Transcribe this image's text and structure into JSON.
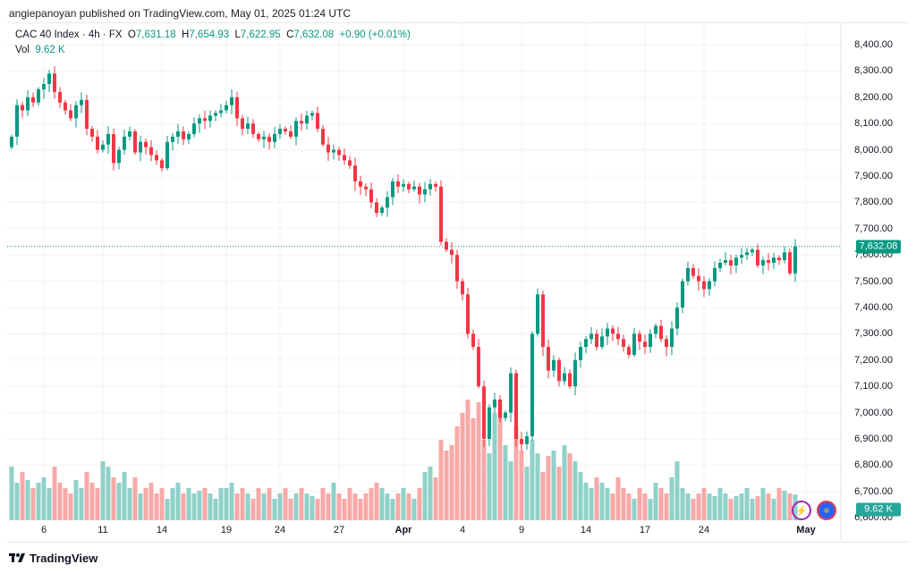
{
  "published": "angiepanoyan published on TradingView.com, May 01, 2025 01:24 UTC",
  "legend": {
    "symbol": "CAC 40 Index · 4h · FX",
    "o_label": "O",
    "o": "7,631.18",
    "h_label": "H",
    "h": "7,654.93",
    "l_label": "L",
    "l": "7,622.95",
    "c_label": "C",
    "c": "7,632.08",
    "change": "+0.90 (+0.01%)",
    "vol_label": "Vol",
    "vol": "9.62 K"
  },
  "colors": {
    "up": "#089981",
    "down": "#f23645",
    "up_vol": "#8fd1c9",
    "down_vol": "#f7a9a7"
  },
  "badges": {
    "price": "7,632.08",
    "volume": "9.62 K"
  },
  "footer": {
    "brand": "TradingView"
  },
  "chart_data": {
    "type": "candlestick",
    "symbol": "CAC 40 Index",
    "interval": "4h",
    "y_ticks": [
      "8,400.00",
      "8,300.00",
      "8,200.00",
      "8,100.00",
      "8,000.00",
      "7,900.00",
      "7,800.00",
      "7,700.00",
      "7,600.00",
      "7,500.00",
      "7,400.00",
      "7,300.00",
      "7,200.00",
      "7,100.00",
      "7,000.00",
      "6,900.00",
      "6,800.00",
      "6,700.00",
      "6,600.00"
    ],
    "y_tick_values": [
      8400,
      8300,
      8200,
      8100,
      8000,
      7900,
      7800,
      7700,
      7600,
      7500,
      7400,
      7300,
      7200,
      7100,
      7000,
      6900,
      6800,
      6700,
      6600
    ],
    "x_ticks": [
      {
        "label": "6",
        "i": 6
      },
      {
        "label": "11",
        "i": 17
      },
      {
        "label": "14",
        "i": 28
      },
      {
        "label": "19",
        "i": 40
      },
      {
        "label": "24",
        "i": 50
      },
      {
        "label": "27",
        "i": 61
      },
      {
        "label": "Apr",
        "i": 73
      },
      {
        "label": "4",
        "i": 84
      },
      {
        "label": "9",
        "i": 95
      },
      {
        "label": "14",
        "i": 107
      },
      {
        "label": "17",
        "i": 118
      },
      {
        "label": "24",
        "i": 129
      },
      {
        "label": "May",
        "i": 148
      }
    ],
    "last_price": 7632.08,
    "close": [
      8050,
      8170,
      8150,
      8200,
      8180,
      8230,
      8250,
      8290,
      8220,
      8180,
      8150,
      8120,
      8170,
      8190,
      8080,
      8050,
      8000,
      8020,
      8060,
      7950,
      8000,
      8050,
      8070,
      7990,
      8030,
      8010,
      7980,
      7960,
      7930,
      8030,
      8050,
      8070,
      8040,
      8060,
      8100,
      8120,
      8110,
      8130,
      8140,
      8150,
      8170,
      8200,
      8120,
      8080,
      8100,
      8060,
      8040,
      8050,
      8030,
      8060,
      8080,
      8070,
      8050,
      8110,
      8100,
      8130,
      8140,
      8080,
      8020,
      7990,
      8000,
      7980,
      7960,
      7940,
      7880,
      7860,
      7850,
      7800,
      7760,
      7780,
      7820,
      7880,
      7860,
      7870,
      7850,
      7860,
      7830,
      7850,
      7870,
      7860,
      7650,
      7620,
      7600,
      7500,
      7450,
      7300,
      7250,
      7100,
      6900,
      7020,
      7050,
      6980,
      7000,
      7150,
      6900,
      6880,
      6910,
      7300,
      7450,
      7250,
      7160,
      7200,
      7120,
      7150,
      7100,
      7200,
      7250,
      7280,
      7300,
      7250,
      7290,
      7320,
      7300,
      7280,
      7250,
      7220,
      7300,
      7270,
      7250,
      7300,
      7330,
      7280,
      7250,
      7320,
      7400,
      7500,
      7550,
      7520,
      7500,
      7470,
      7500,
      7550,
      7570,
      7580,
      7560,
      7590,
      7600,
      7610,
      7620,
      7560,
      7580,
      7570,
      7590,
      7580,
      7610,
      7530,
      7632
    ],
    "volume_k": [
      20,
      14,
      18,
      15,
      12,
      14,
      16,
      12,
      20,
      14,
      12,
      10,
      15,
      12,
      18,
      14,
      12,
      22,
      20,
      16,
      14,
      18,
      12,
      16,
      10,
      12,
      14,
      10,
      12,
      8,
      12,
      14,
      10,
      12,
      10,
      11,
      12,
      10,
      8,
      12,
      12,
      14,
      10,
      12,
      10,
      8,
      12,
      10,
      12,
      8,
      10,
      12,
      8,
      10,
      12,
      10,
      9,
      8,
      12,
      10,
      14,
      10,
      8,
      12,
      10,
      8,
      10,
      12,
      14,
      12,
      10,
      8,
      10,
      12,
      10,
      8,
      12,
      18,
      20,
      16,
      30,
      26,
      28,
      35,
      40,
      45,
      38,
      44,
      30,
      25,
      40,
      45,
      28,
      22,
      35,
      26,
      20,
      30,
      25,
      18,
      24,
      26,
      20,
      28,
      25,
      22,
      18,
      14,
      12,
      16,
      14,
      12,
      10,
      16,
      12,
      10,
      8,
      12,
      10,
      8,
      14,
      12,
      10,
      16,
      22,
      12,
      10,
      8,
      10,
      12,
      10,
      9,
      12,
      10,
      8,
      9,
      10,
      12,
      8,
      9,
      12,
      10,
      8,
      12,
      11,
      10,
      9.62
    ]
  }
}
